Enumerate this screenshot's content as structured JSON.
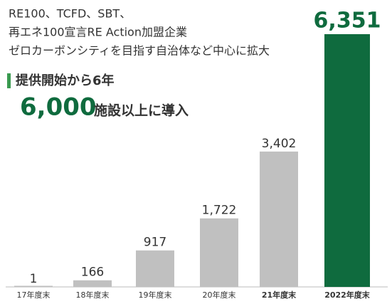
{
  "chart_data": {
    "type": "bar",
    "annotations": [
      "RE100、TCFD、SBT、",
      "再エネ100宣言RE Action加盟企業",
      "ゼロカーボンシティを目指す自治体など中心に拡大"
    ],
    "subtitle": "提供開始から6年",
    "highlight": "6,000",
    "highlight_suffix": "施設以上に導入",
    "categories": [
      "17年度末",
      "18年度末",
      "19年度末",
      "20年度末",
      "21年度末",
      "2022年度末"
    ],
    "values": [
      1,
      166,
      917,
      1722,
      3402,
      6351
    ],
    "value_labels": [
      "1",
      "166",
      "917",
      "1,722",
      "3,402",
      "6,351"
    ],
    "colors": [
      "#c0c0c0",
      "#c0c0c0",
      "#c0c0c0",
      "#c0c0c0",
      "#c0c0c0",
      "#0f6b3e"
    ],
    "ylim": [
      0,
      6351
    ]
  }
}
